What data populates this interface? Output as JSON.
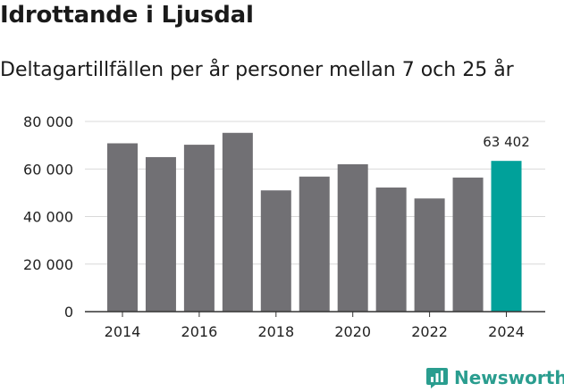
{
  "header": {
    "title": "Idrottande i Ljusdal",
    "subtitle": "Deltagartillfällen per år personer mellan 7 och 25 år"
  },
  "brand": {
    "name": "Newsworthy",
    "icon": "newsworthy-logo-icon"
  },
  "colors": {
    "bar": "#717074",
    "highlight": "#00a19a",
    "grid": "#d9d9d9",
    "axis": "#333333"
  },
  "chart_data": {
    "type": "bar",
    "title": "Idrottande i Ljusdal",
    "subtitle": "Deltagartillfällen per år personer mellan 7 och 25 år",
    "xlabel": "",
    "ylabel": "",
    "categories": [
      "2014",
      "2015",
      "2016",
      "2017",
      "2018",
      "2019",
      "2020",
      "2021",
      "2022",
      "2023",
      "2024"
    ],
    "values": [
      70800,
      65000,
      70200,
      75200,
      51000,
      56800,
      62000,
      52200,
      47600,
      56400,
      63402
    ],
    "highlight_index": 10,
    "highlight_label": "63 402",
    "ylim": [
      0,
      80000
    ],
    "yticks": [
      0,
      20000,
      40000,
      60000,
      80000
    ],
    "ytick_labels": [
      "0",
      "20 000",
      "40 000",
      "60 000",
      "80 000"
    ],
    "xtick_labels": [
      "2014",
      "2016",
      "2018",
      "2020",
      "2022",
      "2024"
    ],
    "grid": true,
    "legend": "none"
  }
}
